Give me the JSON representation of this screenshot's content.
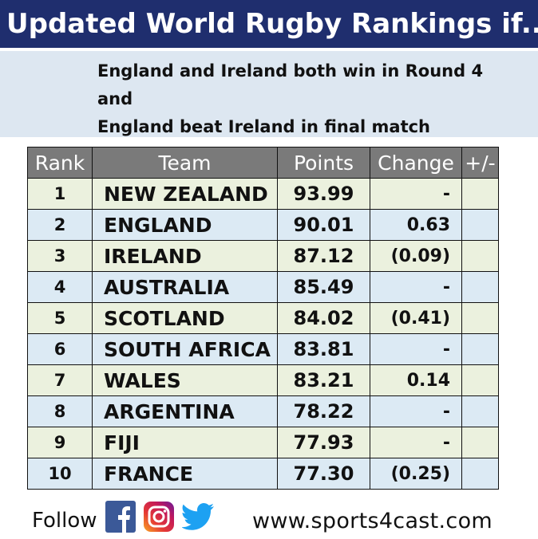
{
  "title": "Updated World Rugby Rankings if...",
  "scenario": {
    "line1": "England and Ireland both win in Round 4",
    "line2": "and",
    "line3": "England beat Ireland in final match"
  },
  "table": {
    "headers": {
      "rank": "Rank",
      "team": "Team",
      "points": "Points",
      "change": "Change",
      "plus_minus": "+/-"
    },
    "rows": [
      {
        "rank": "1",
        "team": "NEW ZEALAND",
        "points": "93.99",
        "change": "-"
      },
      {
        "rank": "2",
        "team": "ENGLAND",
        "points": "90.01",
        "change": "0.63"
      },
      {
        "rank": "3",
        "team": "IRELAND",
        "points": "87.12",
        "change": "(0.09)"
      },
      {
        "rank": "4",
        "team": "AUSTRALIA",
        "points": "85.49",
        "change": "-"
      },
      {
        "rank": "5",
        "team": "SCOTLAND",
        "points": "84.02",
        "change": "(0.41)"
      },
      {
        "rank": "6",
        "team": "SOUTH AFRICA",
        "points": "83.81",
        "change": "-"
      },
      {
        "rank": "7",
        "team": "WALES",
        "points": "83.21",
        "change": "0.14"
      },
      {
        "rank": "8",
        "team": "ARGENTINA",
        "points": "78.22",
        "change": "-"
      },
      {
        "rank": "9",
        "team": "FIJI",
        "points": "77.93",
        "change": "-"
      },
      {
        "rank": "10",
        "team": "FRANCE",
        "points": "77.30",
        "change": "(0.25)"
      }
    ]
  },
  "footer": {
    "follow_label": "Follow",
    "icons": [
      "facebook-icon",
      "instagram-icon",
      "twitter-icon"
    ],
    "website": "www.sports4cast.com"
  },
  "colors": {
    "title_bg": "#1f2e6e",
    "scenario_bg": "#dde7f1",
    "header_bg": "#7a7a7a",
    "row_odd": "#ebf1de",
    "row_even": "#dceaf4"
  }
}
